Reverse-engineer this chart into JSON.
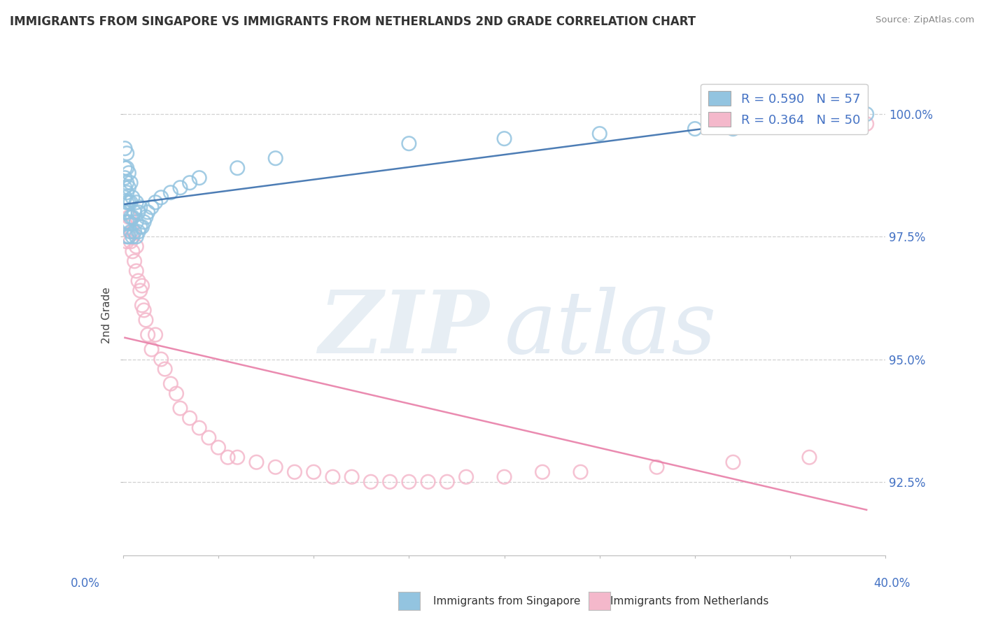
{
  "title": "IMMIGRANTS FROM SINGAPORE VS IMMIGRANTS FROM NETHERLANDS 2ND GRADE CORRELATION CHART",
  "source": "Source: ZipAtlas.com",
  "ylabel": "2nd Grade",
  "ytick_labels": [
    "92.5%",
    "95.0%",
    "97.5%",
    "100.0%"
  ],
  "ytick_values": [
    0.925,
    0.95,
    0.975,
    1.0
  ],
  "xlim": [
    0.0,
    0.4
  ],
  "ylim": [
    0.91,
    1.008
  ],
  "color_singapore": "#93c4e0",
  "color_netherlands": "#f4b8cb",
  "color_singapore_line": "#3a6fad",
  "color_netherlands_line": "#e87fa8",
  "background_color": "#ffffff",
  "legend_sg_R": "0.590",
  "legend_sg_N": "57",
  "legend_nl_R": "0.364",
  "legend_nl_N": "50",
  "singapore_x": [
    0.001,
    0.001,
    0.001,
    0.001,
    0.001,
    0.001,
    0.002,
    0.002,
    0.002,
    0.002,
    0.002,
    0.002,
    0.002,
    0.002,
    0.003,
    0.003,
    0.003,
    0.003,
    0.003,
    0.004,
    0.004,
    0.004,
    0.004,
    0.005,
    0.005,
    0.005,
    0.006,
    0.006,
    0.007,
    0.007,
    0.007,
    0.008,
    0.008,
    0.009,
    0.009,
    0.01,
    0.011,
    0.012,
    0.013,
    0.015,
    0.017,
    0.02,
    0.025,
    0.03,
    0.035,
    0.04,
    0.06,
    0.08,
    0.15,
    0.2,
    0.25,
    0.3,
    0.32,
    0.34,
    0.36,
    0.38,
    0.39
  ],
  "singapore_y": [
    0.98,
    0.983,
    0.985,
    0.987,
    0.989,
    0.993,
    0.975,
    0.978,
    0.98,
    0.982,
    0.984,
    0.986,
    0.989,
    0.992,
    0.975,
    0.978,
    0.982,
    0.985,
    0.988,
    0.976,
    0.979,
    0.982,
    0.986,
    0.975,
    0.979,
    0.983,
    0.976,
    0.98,
    0.975,
    0.978,
    0.982,
    0.976,
    0.98,
    0.977,
    0.981,
    0.977,
    0.978,
    0.979,
    0.98,
    0.981,
    0.982,
    0.983,
    0.984,
    0.985,
    0.986,
    0.987,
    0.989,
    0.991,
    0.994,
    0.995,
    0.996,
    0.997,
    0.997,
    0.998,
    0.998,
    0.999,
    1.0
  ],
  "netherlands_x": [
    0.001,
    0.002,
    0.002,
    0.003,
    0.003,
    0.004,
    0.005,
    0.005,
    0.006,
    0.007,
    0.007,
    0.008,
    0.009,
    0.01,
    0.01,
    0.011,
    0.012,
    0.013,
    0.015,
    0.017,
    0.02,
    0.022,
    0.025,
    0.028,
    0.03,
    0.035,
    0.04,
    0.045,
    0.05,
    0.055,
    0.06,
    0.07,
    0.08,
    0.09,
    0.1,
    0.11,
    0.12,
    0.13,
    0.14,
    0.15,
    0.16,
    0.17,
    0.18,
    0.2,
    0.22,
    0.24,
    0.28,
    0.32,
    0.36,
    0.39
  ],
  "netherlands_y": [
    0.978,
    0.974,
    0.977,
    0.975,
    0.979,
    0.974,
    0.972,
    0.976,
    0.97,
    0.968,
    0.973,
    0.966,
    0.964,
    0.961,
    0.965,
    0.96,
    0.958,
    0.955,
    0.952,
    0.955,
    0.95,
    0.948,
    0.945,
    0.943,
    0.94,
    0.938,
    0.936,
    0.934,
    0.932,
    0.93,
    0.93,
    0.929,
    0.928,
    0.927,
    0.927,
    0.926,
    0.926,
    0.925,
    0.925,
    0.925,
    0.925,
    0.925,
    0.926,
    0.926,
    0.927,
    0.927,
    0.928,
    0.929,
    0.93,
    0.998
  ]
}
